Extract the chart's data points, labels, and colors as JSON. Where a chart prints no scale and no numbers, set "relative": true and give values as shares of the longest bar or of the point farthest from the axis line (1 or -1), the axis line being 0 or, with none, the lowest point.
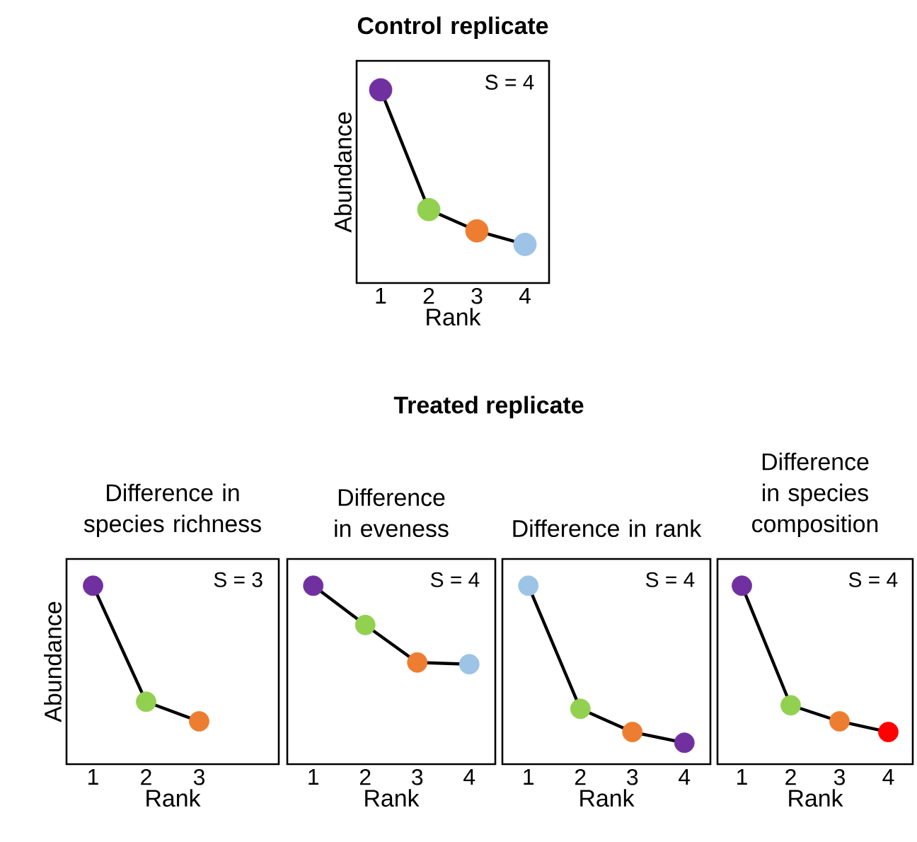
{
  "chart_data": [
    {
      "type": "line",
      "title": "Control  replicate",
      "xlabel": "Rank",
      "ylabel": "Abundance",
      "relative": true,
      "marker": "circle",
      "categories": [
        "1",
        "2",
        "3",
        "4"
      ],
      "values": [
        1,
        0.38,
        0.27,
        0.2
      ],
      "colors": [
        "#7030a0",
        "#92d050",
        "#ed7d31",
        "#9dc3e6"
      ],
      "annotations": [
        "S = 4"
      ]
    },
    {
      "type": "line",
      "title": "Difference in species richness",
      "xlabel": "Rank",
      "ylabel": "Abundance",
      "relative": true,
      "marker": "circle",
      "categories": [
        "1",
        "2",
        "3"
      ],
      "values": [
        1,
        0.35,
        0.24
      ],
      "colors": [
        "#7030a0",
        "#92d050",
        "#ed7d31"
      ],
      "annotations": [
        "S = 3",
        "Treated replicate"
      ]
    },
    {
      "type": "line",
      "title": "Difference in eveness",
      "xlabel": "Rank",
      "relative": true,
      "marker": "circle",
      "categories": [
        "1",
        "2",
        "3",
        "4"
      ],
      "values": [
        1,
        0.78,
        0.57,
        0.56
      ],
      "colors": [
        "#7030a0",
        "#92d050",
        "#ed7d31",
        "#9dc3e6"
      ],
      "annotations": [
        "S = 4"
      ]
    },
    {
      "type": "line",
      "title": "Difference in rank",
      "xlabel": "Rank",
      "relative": true,
      "marker": "circle",
      "categories": [
        "1",
        "2",
        "3",
        "4"
      ],
      "values": [
        1,
        0.31,
        0.18,
        0.12
      ],
      "colors": [
        "#9dc3e6",
        "#92d050",
        "#ed7d31",
        "#7030a0"
      ],
      "annotations": [
        "S = 4"
      ]
    },
    {
      "type": "line",
      "title": "Difference in species composition",
      "xlabel": "Rank",
      "relative": true,
      "marker": "circle",
      "categories": [
        "1",
        "2",
        "3",
        "4"
      ],
      "values": [
        1,
        0.33,
        0.24,
        0.18
      ],
      "colors": [
        "#7030a0",
        "#92d050",
        "#ed7d31",
        "#ff0000"
      ],
      "annotations": [
        "S = 4"
      ]
    }
  ]
}
